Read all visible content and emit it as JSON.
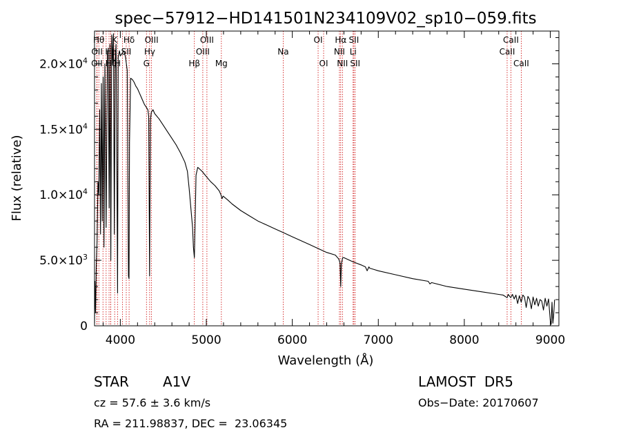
{
  "chart_data": {
    "type": "line",
    "title": "spec−57912−HD141501N234109V02_sp10−059.fits",
    "xlabel": "Wavelength (Å)",
    "ylabel": "Flux (relative)",
    "xlim": [
      3700,
      9100
    ],
    "ylim": [
      0,
      22500
    ],
    "x_ticks": [
      4000,
      5000,
      6000,
      7000,
      8000,
      9000
    ],
    "x_tick_labels": [
      "4000",
      "5000",
      "6000",
      "7000",
      "8000",
      "9000"
    ],
    "y_ticks": [
      0,
      5000,
      10000,
      15000,
      20000
    ],
    "y_tick_labels": [
      {
        "main": "0",
        "sup": ""
      },
      {
        "main": "5.0×10",
        "sup": "3"
      },
      {
        "main": "1.0×10",
        "sup": "4"
      },
      {
        "main": "1.5×10",
        "sup": "4"
      },
      {
        "main": "2.0×10",
        "sup": "4"
      }
    ],
    "line_color": "#000000",
    "marker_color": "#cc0000",
    "series": [
      {
        "x": [
          3700,
          3705,
          3712,
          3720,
          3730,
          3740,
          3750,
          3760,
          3770,
          3780,
          3790,
          3800,
          3810,
          3820,
          3835,
          3850,
          3860,
          3870,
          3880,
          3889,
          3900,
          3910,
          3920,
          3930,
          3940,
          3950,
          3960,
          3968,
          3975,
          3990,
          4000,
          4020,
          4040,
          4060,
          4080,
          4095,
          4101,
          4107,
          4120,
          4140,
          4160,
          4180,
          4200,
          4220,
          4240,
          4260,
          4280,
          4300,
          4320,
          4330,
          4340,
          4350,
          4360,
          4380,
          4400,
          4450,
          4500,
          4550,
          4600,
          4650,
          4700,
          4750,
          4780,
          4800,
          4820,
          4840,
          4850,
          4861,
          4870,
          4880,
          4900,
          4950,
          5000,
          5050,
          5100,
          5150,
          5170,
          5183,
          5195,
          5250,
          5300,
          5400,
          5500,
          5600,
          5700,
          5800,
          5900,
          6000,
          6100,
          6200,
          6300,
          6400,
          6500,
          6540,
          6555,
          6563,
          6570,
          6585,
          6600,
          6700,
          6800,
          6850,
          6870,
          6890,
          6900,
          6950,
          7000,
          7200,
          7400,
          7580,
          7600,
          7620,
          7800,
          8000,
          8200,
          8400,
          8450,
          8498,
          8510,
          8540,
          8560,
          8580,
          8600,
          8620,
          8640,
          8662,
          8680,
          8700,
          8720,
          8740,
          8760,
          8780,
          8800,
          8820,
          8840,
          8860,
          8880,
          8900,
          8920,
          8940,
          8960,
          8980,
          9000,
          9010,
          9020,
          9030,
          9040,
          9050
        ],
        "y": [
          200,
          3400,
          1000,
          4500,
          6500,
          11000,
          10000,
          16500,
          7000,
          18500,
          8000,
          19000,
          6000,
          20000,
          7500,
          20800,
          21200,
          9000,
          21500,
          5000,
          22200,
          20000,
          22300,
          7000,
          20000,
          21500,
          12000,
          2500,
          20500,
          21000,
          20600,
          20800,
          21000,
          20500,
          19500,
          3800,
          3600,
          14000,
          18900,
          18800,
          18600,
          18300,
          18100,
          17800,
          17500,
          17200,
          16900,
          16700,
          16500,
          16000,
          3800,
          15700,
          16300,
          16500,
          16200,
          15800,
          15300,
          14800,
          14300,
          13800,
          13200,
          12500,
          11800,
          10500,
          9000,
          7500,
          6000,
          5200,
          8000,
          11500,
          12100,
          11800,
          11400,
          11000,
          10700,
          10300,
          10000,
          9700,
          9900,
          9600,
          9300,
          8800,
          8400,
          8000,
          7700,
          7400,
          7100,
          6800,
          6500,
          6200,
          5900,
          5600,
          5400,
          5100,
          4800,
          3000,
          4700,
          5200,
          5200,
          4900,
          4650,
          4500,
          4200,
          4500,
          4400,
          4300,
          4200,
          3900,
          3600,
          3400,
          3200,
          3300,
          3000,
          2800,
          2600,
          2400,
          2350,
          2150,
          2400,
          2150,
          2400,
          2050,
          2350,
          1700,
          2300,
          1800,
          2350,
          2200,
          1400,
          2250,
          2000,
          1300,
          2200,
          1600,
          2100,
          1500,
          2000,
          1900,
          1200,
          2100,
          1500,
          2050,
          400,
          100,
          1800,
          200,
          900,
          2000
        ]
      }
    ],
    "lines": [
      {
        "x": 3750,
        "label": "Hθ",
        "row": 1
      },
      {
        "x": 3729,
        "label": "OII",
        "row": 2
      },
      {
        "x": 3727,
        "label": "OII",
        "row": 3
      },
      {
        "x": 3798,
        "label": "",
        "row": 1
      },
      {
        "x": 3835,
        "label": "",
        "row": 2
      },
      {
        "x": 3869,
        "label": "",
        "row": 2
      },
      {
        "x": 3889,
        "label": "He",
        "row": 2
      },
      {
        "x": 3889,
        "label": "Hζ",
        "row": 3
      },
      {
        "x": 3934,
        "label": "K",
        "row": 1
      },
      {
        "x": 3969,
        "label": "H",
        "row": 3
      },
      {
        "x": 4026,
        "label": "",
        "row": 2
      },
      {
        "x": 4069,
        "label": "SII",
        "row": 2
      },
      {
        "x": 4102,
        "label": "Hδ",
        "row": 1
      },
      {
        "x": 4304,
        "label": "G",
        "row": 3
      },
      {
        "x": 4341,
        "label": "Hγ",
        "row": 2
      },
      {
        "x": 4363,
        "label": "OIII",
        "row": 1
      },
      {
        "x": 4861,
        "label": "Hβ",
        "row": 3
      },
      {
        "x": 4959,
        "label": "OIII",
        "row": 2
      },
      {
        "x": 5007,
        "label": "OIII",
        "row": 1
      },
      {
        "x": 5175,
        "label": "Mg",
        "row": 3
      },
      {
        "x": 5894,
        "label": "Na",
        "row": 2
      },
      {
        "x": 6300,
        "label": "OI",
        "row": 1
      },
      {
        "x": 6364,
        "label": "OI",
        "row": 3
      },
      {
        "x": 6548,
        "label": "NII",
        "row": 2
      },
      {
        "x": 6563,
        "label": "Hα",
        "row": 1
      },
      {
        "x": 6583,
        "label": "NII",
        "row": 3
      },
      {
        "x": 6707,
        "label": "Li",
        "row": 2
      },
      {
        "x": 6716,
        "label": "SII",
        "row": 1
      },
      {
        "x": 6731,
        "label": "SII",
        "row": 3
      },
      {
        "x": 8498,
        "label": "CaII",
        "row": 2
      },
      {
        "x": 8542,
        "label": "CaII",
        "row": 1
      },
      {
        "x": 8662,
        "label": "CaII",
        "row": 3
      }
    ]
  },
  "info": {
    "object_class": "STAR",
    "subclass": "A1V",
    "survey": "LAMOST  DR5",
    "redshift": "cz = 57.6 ± 3.6 km/s",
    "obs_date": "Obs−Date: 20170607",
    "coords": "RA = 211.98837, DEC =  23.06345"
  }
}
